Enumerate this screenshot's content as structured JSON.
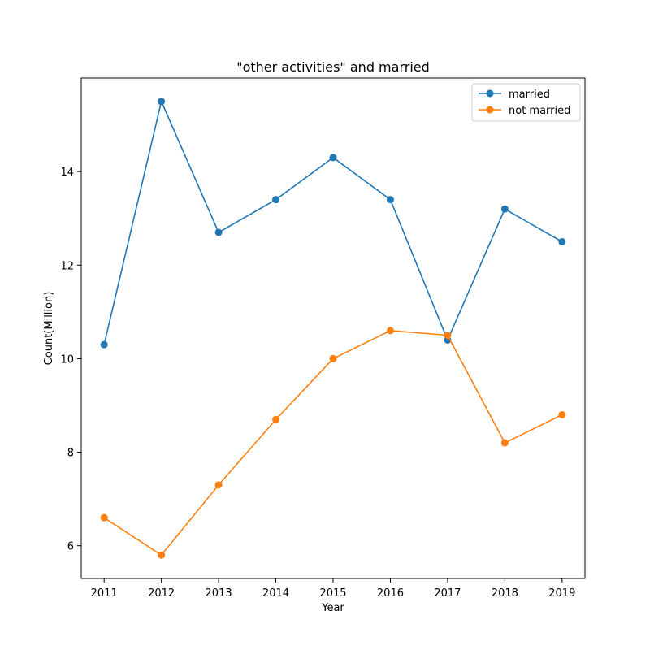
{
  "chart_data": {
    "type": "line",
    "title": "\"other activities\" and married",
    "xlabel": "Year",
    "ylabel": "Count(Million)",
    "x": [
      2011,
      2012,
      2013,
      2014,
      2015,
      2016,
      2017,
      2018,
      2019
    ],
    "xlim": [
      2010.6,
      2019.4
    ],
    "ylim": [
      5.3,
      16.0
    ],
    "yticks": [
      6,
      8,
      10,
      12,
      14
    ],
    "grid": false,
    "legend_position": "top-right",
    "series": [
      {
        "name": "married",
        "color": "#1f77b4",
        "values": [
          10.3,
          15.5,
          12.7,
          13.4,
          14.3,
          13.4,
          10.4,
          13.2,
          12.5
        ]
      },
      {
        "name": "not married",
        "color": "#ff7f0e",
        "values": [
          6.6,
          5.8,
          7.3,
          8.7,
          10.0,
          10.6,
          10.5,
          8.2,
          8.8
        ]
      }
    ]
  }
}
